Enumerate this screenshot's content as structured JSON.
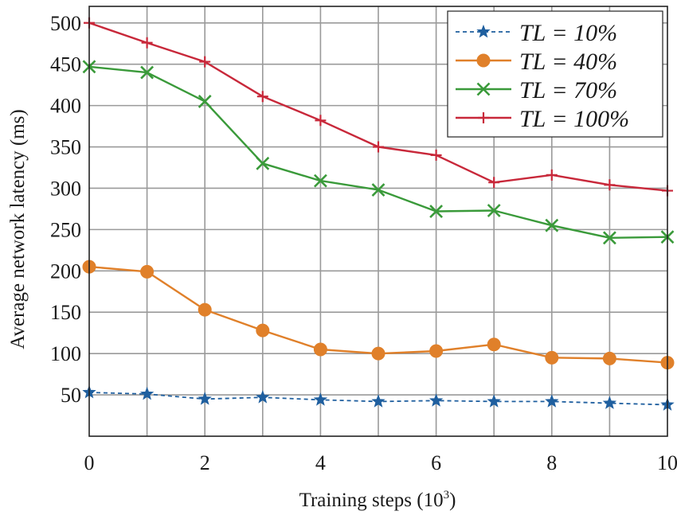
{
  "chart_data": {
    "type": "line",
    "xlabel": "Training steps (10",
    "xlabel_sup": "3",
    "xlabel_close": ")",
    "ylabel": "Average network latency (ms)",
    "xlim": [
      0,
      10
    ],
    "ylim": [
      0,
      520
    ],
    "x_ticks": [
      0,
      2,
      4,
      6,
      8,
      10
    ],
    "x_tick_labels": [
      "0",
      "2",
      "4",
      "6",
      "8",
      "10"
    ],
    "y_ticks": [
      50,
      100,
      150,
      200,
      250,
      300,
      350,
      400,
      450,
      500
    ],
    "y_tick_labels": [
      "50",
      "100",
      "150",
      "200",
      "250",
      "300",
      "350",
      "400",
      "450",
      "500"
    ],
    "grid": true,
    "legend_position": "top-right",
    "x": [
      0,
      1,
      2,
      3,
      4,
      5,
      6,
      7,
      8,
      9,
      10
    ],
    "series": [
      {
        "name": "TL = 10%",
        "color": "#1f5f9f",
        "marker": "star",
        "line_style": "dashed",
        "values": [
          53,
          51,
          45,
          47,
          44,
          42,
          43,
          42,
          42,
          40,
          38
        ]
      },
      {
        "name": "TL = 40%",
        "color": "#e0802a",
        "marker": "circle",
        "line_style": "solid",
        "values": [
          205,
          199,
          153,
          128,
          105,
          100,
          103,
          111,
          95,
          94,
          89
        ]
      },
      {
        "name": "TL = 70%",
        "color": "#3a9a3a",
        "marker": "x",
        "line_style": "solid",
        "values": [
          447,
          440,
          405,
          330,
          309,
          298,
          272,
          273,
          255,
          240,
          241
        ]
      },
      {
        "name": "TL = 100%",
        "color": "#c8283a",
        "marker": "plus",
        "line_style": "solid",
        "values": [
          500,
          476,
          453,
          411,
          382,
          350,
          340,
          307,
          316,
          304,
          297
        ]
      }
    ]
  }
}
